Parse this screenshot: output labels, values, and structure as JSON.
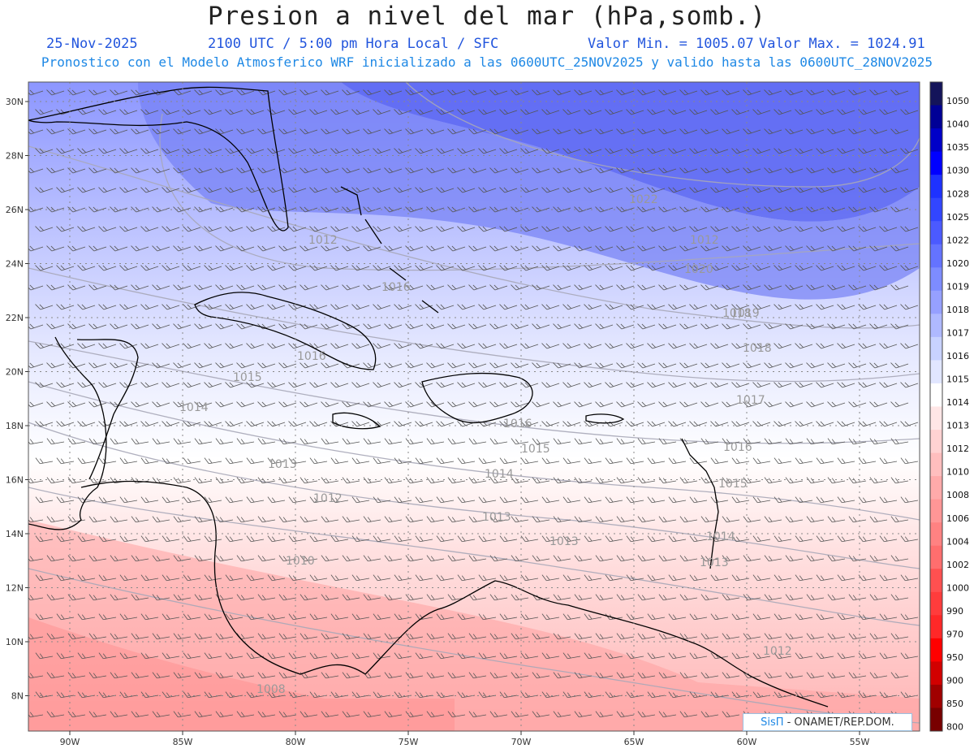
{
  "header": {
    "title": "Presion a nivel del mar (hPa,somb.)",
    "date": "25-Nov-2025",
    "time": "2100 UTC / 5:00 pm Hora Local / SFC",
    "min_label": "Valor Min. = 1005.07",
    "max_label": "Valor Max. = 1024.91",
    "model_line": "Pronostico con el Modelo Atmosferico WRF inicializado a las 0600UTC_25NOV2025 y valido hasta las  0600UTC_28NOV2025"
  },
  "axes": {
    "lat_ticks": [
      "30N",
      "28N",
      "26N",
      "24N",
      "22N",
      "20N",
      "18N",
      "16N",
      "14N",
      "12N",
      "10N",
      "8N"
    ],
    "lon_ticks": [
      "90W",
      "85W",
      "80W",
      "75W",
      "70W",
      "65W",
      "60W",
      "55W"
    ]
  },
  "contour_labels": [
    "1022",
    "1020",
    "1019",
    "1018",
    "1017",
    "1016",
    "1016",
    "1016",
    "1016",
    "1015",
    "1015",
    "1015",
    "1014",
    "1014",
    "1014",
    "1013",
    "1013",
    "1013",
    "1013",
    "1012",
    "1012",
    "1012",
    "1012",
    "1010",
    "1008",
    "1018"
  ],
  "colorbar": {
    "labels": [
      "1050",
      "1040",
      "1035",
      "1030",
      "1028",
      "1025",
      "1022",
      "1020",
      "1019",
      "1018",
      "1017",
      "1016",
      "1015",
      "1014",
      "1013",
      "1012",
      "1010",
      "1008",
      "1006",
      "1004",
      "1002",
      "1000",
      "990",
      "970",
      "950",
      "900",
      "850",
      "800"
    ],
    "colors": [
      "#14145a",
      "#000096",
      "#0000c8",
      "#0000ff",
      "#1e32ff",
      "#3246ff",
      "#4b5aff",
      "#6473ff",
      "#7d8cff",
      "#96a0ff",
      "#afb9ff",
      "#c8d2ff",
      "#e1e6ff",
      "#ffffff",
      "#ffe6e6",
      "#ffd2d2",
      "#ffbebe",
      "#ffaaaa",
      "#ff9696",
      "#ff8282",
      "#ff6e6e",
      "#ff5050",
      "#ff3c3c",
      "#ff2828",
      "#ff0000",
      "#d20000",
      "#a00000",
      "#780000"
    ]
  },
  "credit": {
    "brand": "SisΠ",
    "text": "- ONAMET/REP.DOM."
  }
}
